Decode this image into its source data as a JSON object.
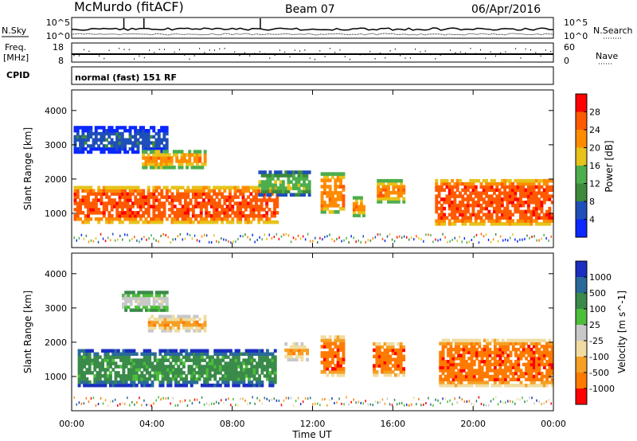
{
  "header": {
    "station_title": "McMurdo (fitACF)",
    "beam_label": "Beam 07",
    "date_label": "06/Apr/2016"
  },
  "colors": {
    "power": [
      "#0a28ff",
      "#1f4fb8",
      "#3d8a3a",
      "#4cae4c",
      "#e6c21a",
      "#ff8c00",
      "#ff5a00",
      "#ff0000"
    ],
    "velocity": [
      "#1a2ebf",
      "#2a6a9a",
      "#3a8a4a",
      "#4cbe3a",
      "#c8c8c8",
      "#f0dca0",
      "#f5a024",
      "#ff7a00",
      "#ff0000"
    ]
  },
  "chart_data": [
    {
      "type": "line",
      "name": "status-panel",
      "left_label": "N.Sky",
      "right_label": "N.Search",
      "left_ticks": [
        "10^5",
        "10^0"
      ],
      "right_ticks": [
        "10^5",
        "10^0"
      ]
    },
    {
      "type": "scatter",
      "name": "freq-panel",
      "left_label_top": "Freq.",
      "left_label_unit": "[MHz]",
      "right_label": "Nave",
      "left_ticks": [
        "18",
        "8"
      ],
      "right_ticks": [
        "60",
        "0"
      ],
      "cpid_label": "CPID",
      "cpid_text": "normal (fast) 151 RF"
    },
    {
      "type": "heatmap",
      "name": "power",
      "ylabel": "Slant Range [km]",
      "ylim": [
        0,
        4600
      ],
      "yticks": [
        "1000",
        "2000",
        "3000",
        "4000"
      ],
      "colorbar_label": "Power [dB]",
      "colorbar_ticks": [
        "4",
        "8",
        "12",
        "16",
        "20",
        "24",
        "28"
      ],
      "blobs": [
        {
          "t0": 0.1,
          "t1": 10.3,
          "r0": 700,
          "r1": 1800,
          "level": 6
        },
        {
          "t0": 0.1,
          "t1": 4.8,
          "r0": 2750,
          "r1": 3550,
          "level": 1
        },
        {
          "t0": 3.5,
          "t1": 6.7,
          "r0": 2300,
          "r1": 2850,
          "level": 5
        },
        {
          "t0": 9.3,
          "t1": 11.9,
          "r0": 1500,
          "r1": 2250,
          "level": 3
        },
        {
          "t0": 12.4,
          "t1": 13.6,
          "r0": 1000,
          "r1": 2200,
          "level": 5
        },
        {
          "t0": 14.0,
          "t1": 14.6,
          "r0": 900,
          "r1": 1500,
          "level": 5
        },
        {
          "t0": 15.2,
          "t1": 16.6,
          "r0": 1300,
          "r1": 2000,
          "level": 5
        },
        {
          "t0": 18.1,
          "t1": 24.0,
          "r0": 650,
          "r1": 2000,
          "level": 6
        }
      ]
    },
    {
      "type": "heatmap",
      "name": "velocity",
      "ylabel": "Slant Range [km]",
      "ylim": [
        0,
        4600
      ],
      "yticks": [
        "1000",
        "2000",
        "3000",
        "4000"
      ],
      "xlabel": "Time UT",
      "xticks": [
        "00:00",
        "04:00",
        "08:00",
        "12:00",
        "16:00",
        "20:00",
        "00:00"
      ],
      "xlim": [
        0,
        24
      ],
      "colorbar_label": "Velocity [m s^-1]",
      "colorbar_ticks": [
        "1000",
        "500",
        "100",
        "25",
        "-25",
        "-100",
        "-500",
        "-1000"
      ],
      "blobs": [
        {
          "t0": 0.3,
          "t1": 10.2,
          "r0": 700,
          "r1": 1800,
          "level": 2
        },
        {
          "t0": 2.5,
          "t1": 4.8,
          "r0": 2900,
          "r1": 3500,
          "level": 4
        },
        {
          "t0": 3.8,
          "t1": 6.7,
          "r0": 2300,
          "r1": 2800,
          "level": 6
        },
        {
          "t0": 10.6,
          "t1": 11.8,
          "r0": 1450,
          "r1": 2000,
          "level": 6
        },
        {
          "t0": 12.4,
          "t1": 13.6,
          "r0": 1000,
          "r1": 2200,
          "level": 7
        },
        {
          "t0": 15.0,
          "t1": 16.6,
          "r0": 1000,
          "r1": 2000,
          "level": 7
        },
        {
          "t0": 18.3,
          "t1": 24.0,
          "r0": 700,
          "r1": 2100,
          "level": 7
        }
      ]
    }
  ]
}
